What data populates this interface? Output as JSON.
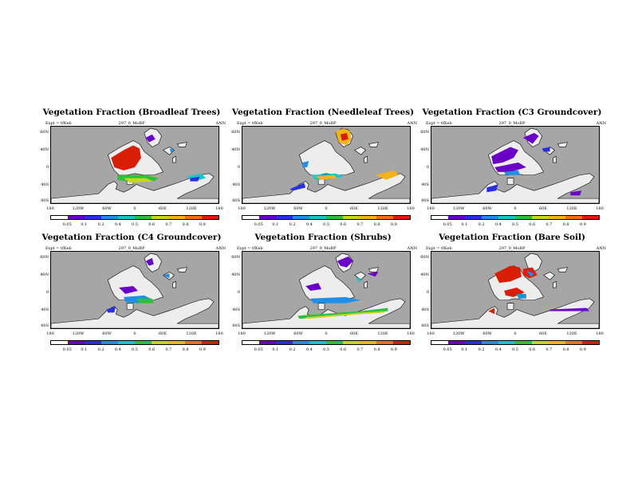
{
  "common": {
    "expt_label": "Expt = tfKeb",
    "run_label": "297_0_MoBP",
    "season": "ANN",
    "lat_labels": [
      "60N",
      "40N",
      "0",
      "40S",
      "80S"
    ],
    "lon_labels": [
      "180",
      "120W",
      "60W",
      "0",
      "60E",
      "120E",
      "180"
    ],
    "colorbar_labels": [
      "0.05",
      "0.1",
      "0.2",
      "0.4",
      "0.5",
      "0.6",
      "0.7",
      "0.8",
      "0.9"
    ],
    "colorbar_colors": [
      "#ffffff",
      "#6a00c8",
      "#2a2fe6",
      "#1f8fe8",
      "#17c7c7",
      "#2fbf3f",
      "#c7d61f",
      "#f2b418",
      "#f07018",
      "#d81e05"
    ]
  },
  "panels": [
    {
      "title": "Vegetation Fraction (Broadleaf Trees)"
    },
    {
      "title": "Vegetation Fraction (Needleleaf Trees)"
    },
    {
      "title": "Vegetation Fraction (C3 Groundcover)"
    },
    {
      "title": "Vegetation Fraction (C4 Groundcover)"
    },
    {
      "title": "Vegetation Fraction (Shrubs)"
    },
    {
      "title": "Vegetation Fraction (Bare Soil)"
    }
  ]
}
